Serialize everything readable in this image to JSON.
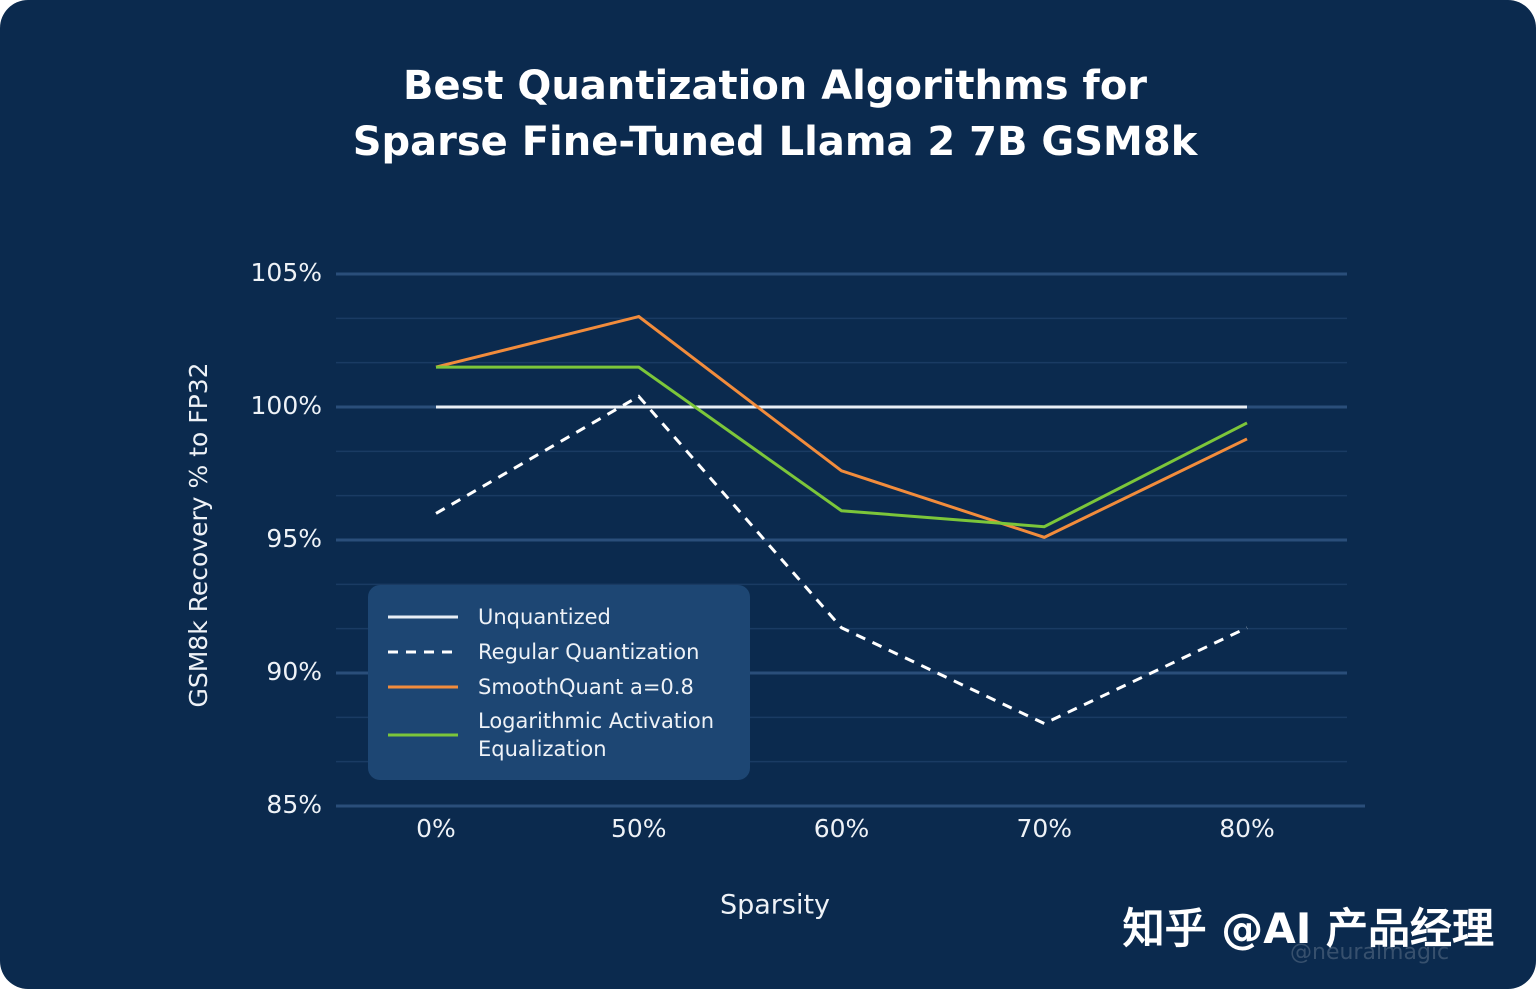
{
  "chart_data": {
    "type": "line",
    "title": "Best Quantization Algorithms for Sparse Fine-Tuned Llama 2 7B GSM8k",
    "x_label": "Sparsity",
    "y_label": "GSM8k Recovery % to FP32",
    "categories": [
      "0%",
      "50%",
      "60%",
      "70%",
      "80%"
    ],
    "series": [
      {
        "name": "Unquantized",
        "color": "#e8eef5",
        "style": "solid",
        "values": [
          100,
          100,
          100,
          100,
          100
        ]
      },
      {
        "name": "Regular Quantization",
        "color": "#ffffff",
        "style": "dashed",
        "values": [
          96.0,
          100.4,
          91.7,
          88.1,
          91.7
        ]
      },
      {
        "name": "SmoothQuant a=0.8",
        "color": "#f28c3c",
        "style": "solid",
        "values": [
          101.5,
          103.4,
          97.6,
          95.1,
          98.8
        ]
      },
      {
        "name": "Logarithmic Activation Equalization",
        "color": "#7cc63a",
        "style": "solid",
        "values": [
          101.5,
          101.5,
          96.1,
          95.5,
          99.4
        ]
      }
    ],
    "ylim": [
      85,
      105
    ],
    "yticks": [
      {
        "value": 85,
        "label": "85%"
      },
      {
        "value": 90,
        "label": "90%"
      },
      {
        "value": 95,
        "label": "95%"
      },
      {
        "value": 100,
        "label": "100%"
      },
      {
        "value": 105,
        "label": "105%"
      }
    ],
    "grid": true,
    "legend": "lower-left"
  },
  "watermark": {
    "main": "知乎 @AI 产品经理",
    "sub": "@neuralmagic"
  }
}
